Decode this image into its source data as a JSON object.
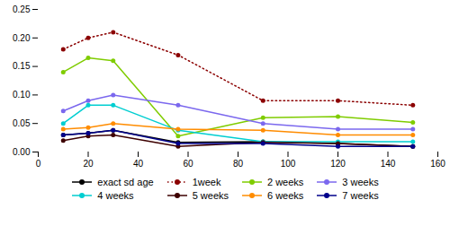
{
  "chart_data": {
    "type": "line",
    "x": [
      10,
      20,
      30,
      56,
      90,
      120,
      150
    ],
    "series": [
      {
        "name": "exact sd age",
        "color": "#000000",
        "line_style": "solid",
        "values": [
          0.03,
          0.033,
          0.038,
          0.017,
          0.018,
          0.015,
          0.01
        ]
      },
      {
        "name": "1week",
        "color": "#8B0000",
        "line_style": "dotted",
        "values": [
          0.18,
          0.2,
          0.21,
          0.17,
          0.09,
          0.09,
          0.082
        ]
      },
      {
        "name": "2 weeks",
        "color": "#7FCC00",
        "line_style": "solid",
        "values": [
          0.14,
          0.165,
          0.16,
          0.028,
          0.06,
          0.062,
          0.052
        ]
      },
      {
        "name": "3 weeks",
        "color": "#7B68EE",
        "line_style": "solid",
        "values": [
          0.072,
          0.09,
          0.1,
          0.082,
          0.05,
          0.04,
          0.04
        ]
      },
      {
        "name": "4 weeks",
        "color": "#00CED1",
        "line_style": "solid",
        "values": [
          0.05,
          0.082,
          0.082,
          0.038,
          0.018,
          0.018,
          0.018
        ]
      },
      {
        "name": "5 weeks",
        "color": "#3D0000",
        "line_style": "solid",
        "values": [
          0.02,
          0.028,
          0.03,
          0.01,
          0.017,
          0.015,
          0.01
        ]
      },
      {
        "name": "6 weeks",
        "color": "#FF8C00",
        "line_style": "solid",
        "values": [
          0.04,
          0.043,
          0.05,
          0.04,
          0.038,
          0.03,
          0.03
        ]
      },
      {
        "name": "7 weeks",
        "color": "#00008B",
        "line_style": "solid",
        "values": [
          0.03,
          0.033,
          0.038,
          0.015,
          0.015,
          0.01,
          0.01
        ]
      }
    ],
    "marker": "circle",
    "xlim": [
      0,
      160
    ],
    "xticks": [
      0,
      20,
      40,
      60,
      80,
      100,
      120,
      140,
      160
    ],
    "ylim": [
      0,
      0.25
    ],
    "yticks": [
      {
        "value": 0,
        "label": "0.00"
      },
      0.05,
      {
        "value": 0.1,
        "label": "0.10"
      },
      0.15,
      {
        "value": 0.2,
        "label": "0.20"
      },
      0.25
    ],
    "grid": false,
    "legend": "bottom"
  }
}
